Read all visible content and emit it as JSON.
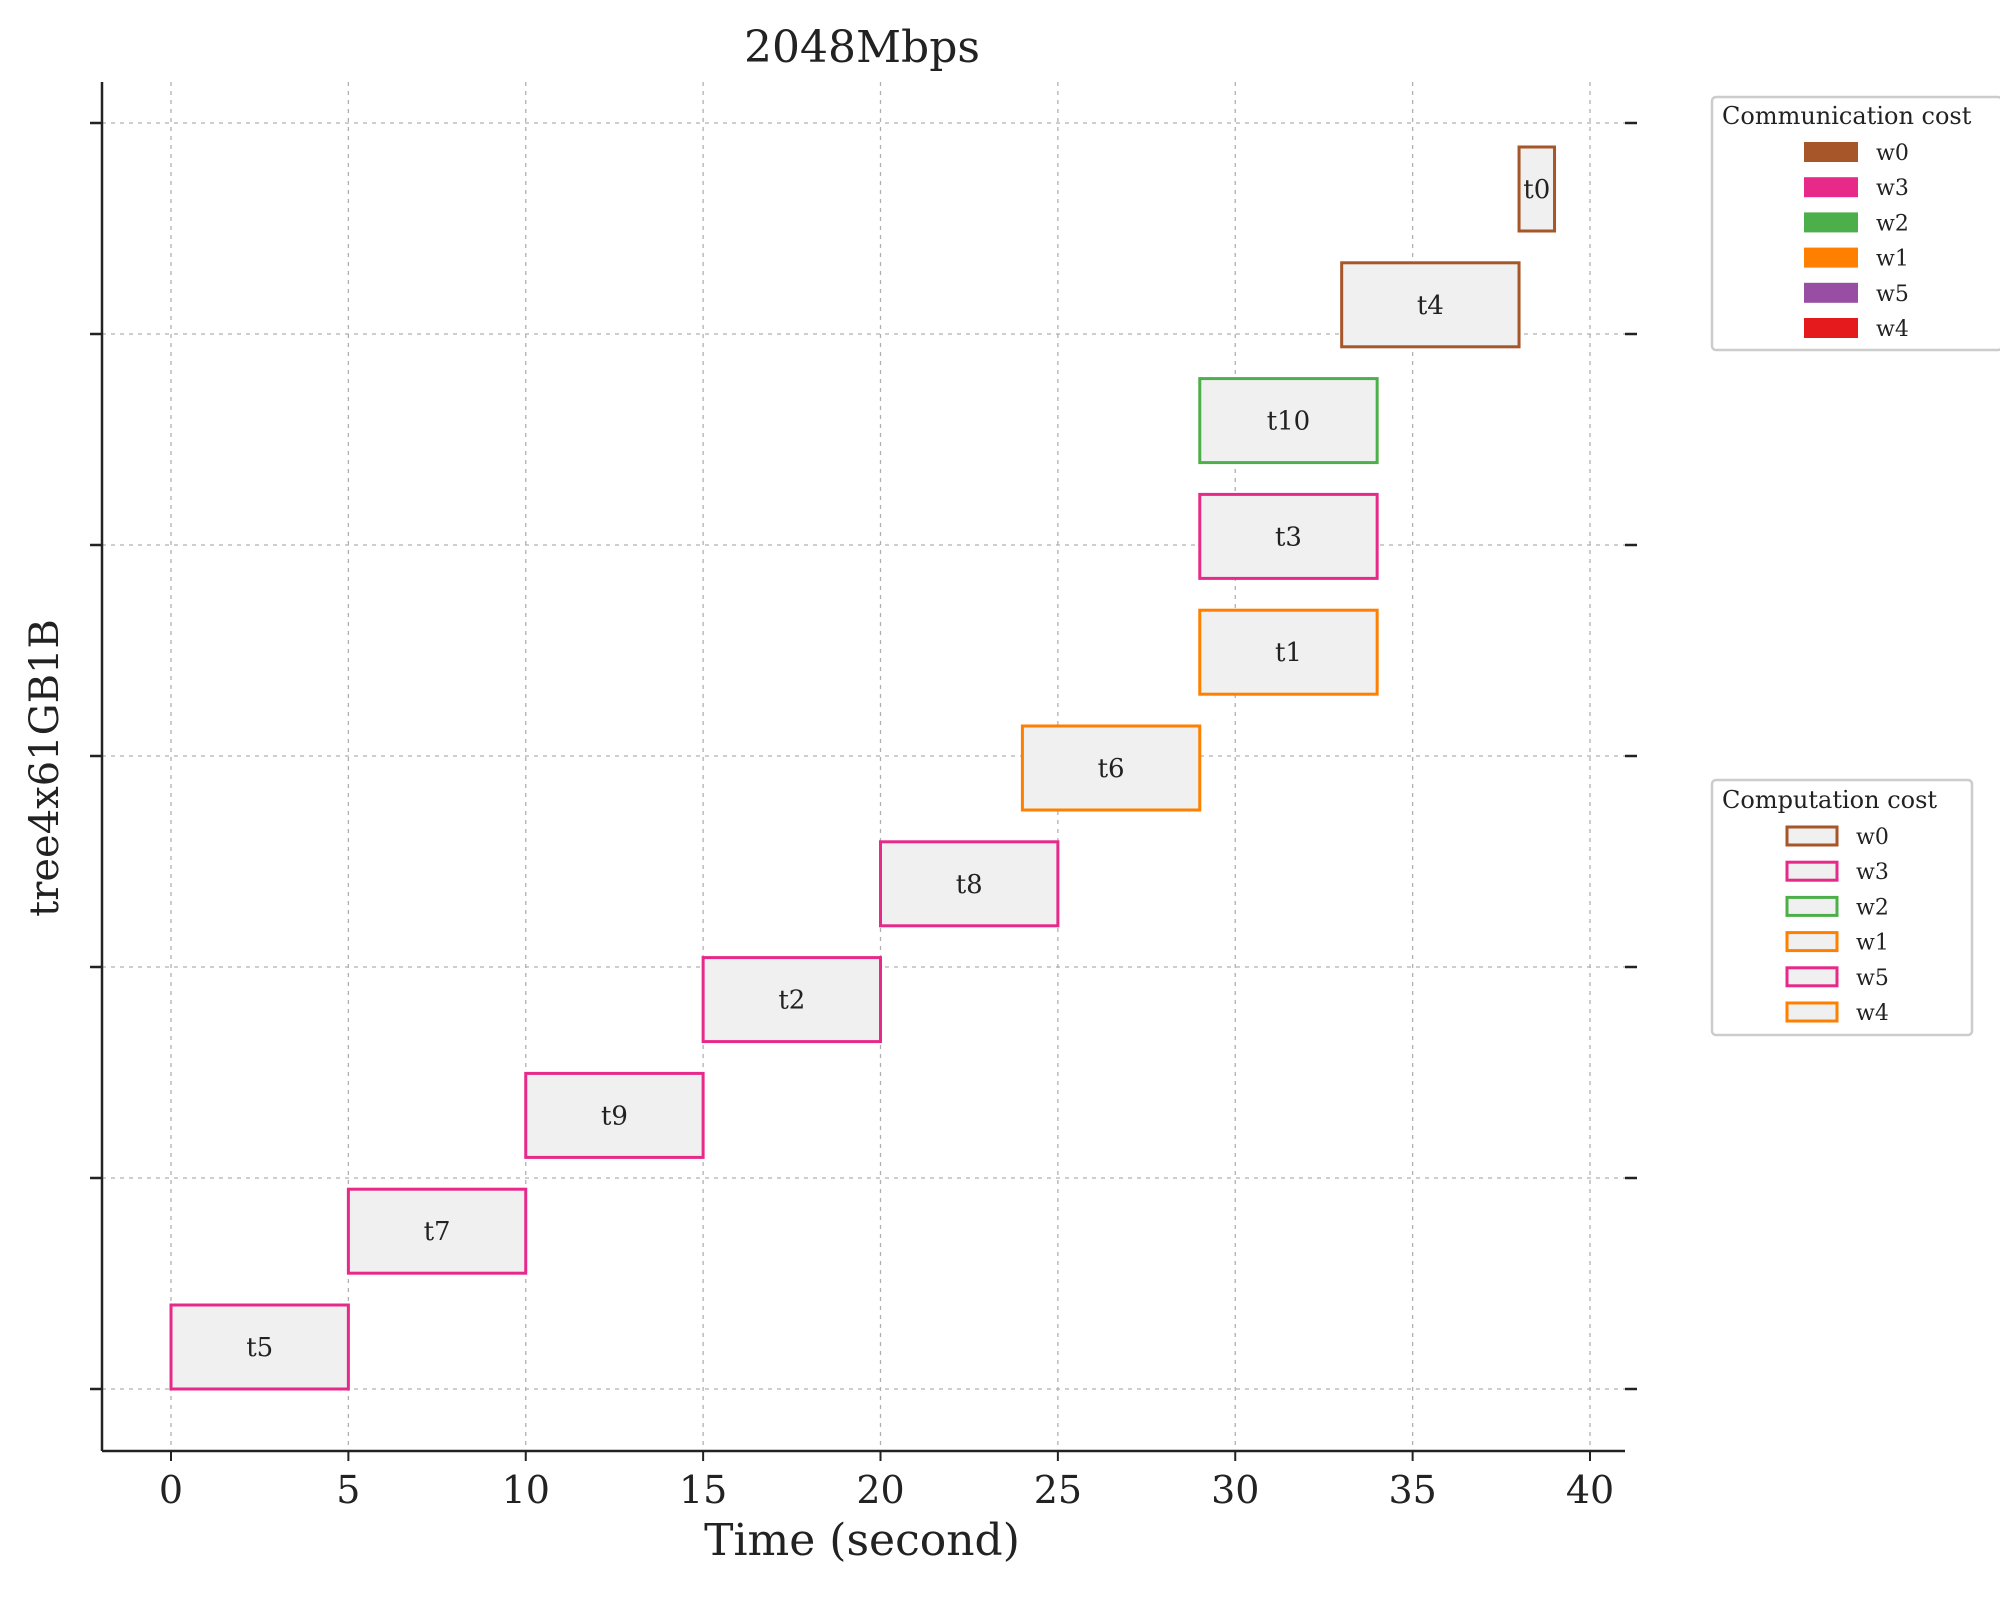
{
  "chart_data": {
    "type": "gantt",
    "title": "2048Mbps",
    "xlabel": "Time (second)",
    "ylabel": "tree4x61GB1B",
    "xlim": [
      -1.9,
      40.9
    ],
    "xticks": [
      0,
      5,
      10,
      15,
      20,
      25,
      30,
      35,
      40
    ],
    "row_count": 11,
    "grid": true,
    "tasks": [
      {
        "label": "t5",
        "start": 0,
        "end": 5,
        "row": 0,
        "worker": "w5"
      },
      {
        "label": "t7",
        "start": 5,
        "end": 10,
        "row": 1,
        "worker": "w5"
      },
      {
        "label": "t9",
        "start": 10,
        "end": 15,
        "row": 2,
        "worker": "w5"
      },
      {
        "label": "t2",
        "start": 15,
        "end": 20,
        "row": 3,
        "worker": "w5"
      },
      {
        "label": "t8",
        "start": 20,
        "end": 25,
        "row": 4,
        "worker": "w3"
      },
      {
        "label": "t6",
        "start": 24,
        "end": 29,
        "row": 5,
        "worker": "w4"
      },
      {
        "label": "t1",
        "start": 29,
        "end": 34,
        "row": 6,
        "worker": "w1"
      },
      {
        "label": "t3",
        "start": 29,
        "end": 34,
        "row": 7,
        "worker": "w3"
      },
      {
        "label": "t10",
        "start": 29,
        "end": 34,
        "row": 8,
        "worker": "w2"
      },
      {
        "label": "t4",
        "start": 33,
        "end": 38,
        "row": 9,
        "worker": "w0"
      },
      {
        "label": "t0",
        "start": 38,
        "end": 39,
        "row": 10,
        "worker": "w0"
      }
    ],
    "legend_communication": {
      "title": "Communication cost",
      "entries": [
        {
          "name": "w0",
          "color": "#a65628"
        },
        {
          "name": "w3",
          "color": "#e7298a"
        },
        {
          "name": "w2",
          "color": "#4daf4a"
        },
        {
          "name": "w1",
          "color": "#ff7f00"
        },
        {
          "name": "w5",
          "color": "#984ea3"
        },
        {
          "name": "w4",
          "color": "#e41a1c"
        }
      ]
    },
    "legend_computation": {
      "title": "Computation cost",
      "entries": [
        {
          "name": "w0",
          "color": "#a65628"
        },
        {
          "name": "w3",
          "color": "#e7298a"
        },
        {
          "name": "w2",
          "color": "#4daf4a"
        },
        {
          "name": "w1",
          "color": "#ff7f00"
        },
        {
          "name": "w5",
          "color": "#e7298a"
        },
        {
          "name": "w4",
          "color": "#ff7f00"
        }
      ]
    },
    "bar_fill": "#f0f0f0"
  }
}
